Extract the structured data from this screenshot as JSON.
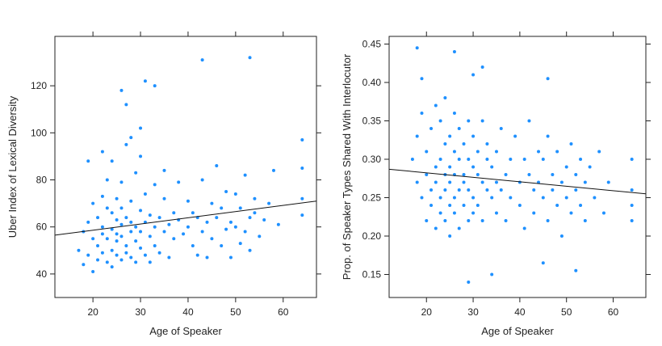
{
  "chart_data": [
    {
      "type": "scatter",
      "xlabel": "Age of Speaker",
      "ylabel": "Uber Index of Lexical Diversity",
      "xlim": [
        12,
        67
      ],
      "ylim": [
        30,
        141
      ],
      "x_ticks": [
        20,
        30,
        40,
        50,
        60
      ],
      "y_ticks": [
        40,
        60,
        80,
        100,
        120
      ],
      "point_color": "#1e90ff",
      "grid": false,
      "fit_line": {
        "x": [
          12,
          67
        ],
        "y": [
          56.5,
          71
        ]
      },
      "series": [
        {
          "x": [
            17,
            18,
            18,
            19,
            19,
            20,
            20,
            20,
            21,
            21,
            21,
            22,
            22,
            22,
            22,
            23,
            23,
            23,
            23,
            24,
            24,
            24,
            24,
            24,
            25,
            25,
            25,
            25,
            25,
            26,
            26,
            26,
            26,
            26,
            27,
            27,
            27,
            27,
            28,
            28,
            28,
            28,
            29,
            29,
            29,
            29,
            30,
            30,
            30,
            30,
            31,
            31,
            31,
            32,
            32,
            32,
            33,
            33,
            33,
            34,
            34,
            35,
            35,
            35,
            36,
            36,
            37,
            37,
            38,
            38,
            39,
            40,
            40,
            41,
            41,
            42,
            42,
            43,
            43,
            44,
            44,
            45,
            45,
            46,
            46,
            47,
            47,
            48,
            48,
            49,
            49,
            50,
            50,
            51,
            51,
            52,
            52,
            53,
            53,
            54,
            54,
            55,
            56,
            57,
            58,
            59,
            64,
            64,
            64,
            64,
            26,
            27,
            31,
            33,
            43,
            53,
            30,
            28,
            22,
            19
          ],
          "y": [
            50,
            58,
            44,
            62,
            48,
            55,
            41,
            70,
            52,
            64,
            46,
            57,
            73,
            49,
            60,
            55,
            68,
            45,
            80,
            59,
            50,
            66,
            88,
            43,
            57,
            72,
            48,
            63,
            54,
            61,
            46,
            79,
            56,
            68,
            52,
            64,
            49,
            95,
            58,
            71,
            47,
            62,
            54,
            83,
            60,
            45,
            58,
            67,
            51,
            90,
            62,
            48,
            74,
            56,
            65,
            45,
            60,
            78,
            52,
            64,
            49,
            58,
            72,
            84,
            61,
            47,
            66,
            55,
            63,
            79,
            57,
            60,
            71,
            52,
            66,
            64,
            48,
            58,
            80,
            62,
            47,
            70,
            55,
            64,
            86,
            52,
            68,
            59,
            75,
            47,
            62,
            60,
            74,
            53,
            68,
            58,
            82,
            64,
            50,
            66,
            72,
            56,
            63,
            70,
            84,
            61,
            72,
            65,
            85,
            97,
            118,
            112,
            122,
            120,
            131,
            132,
            102,
            98,
            92,
            88
          ]
        }
      ]
    },
    {
      "type": "scatter",
      "xlabel": "Age of Speaker",
      "ylabel": "Prop. of Speaker Types Shared With Interlocutor",
      "xlim": [
        12,
        67
      ],
      "ylim": [
        0.12,
        0.46
      ],
      "x_ticks": [
        20,
        30,
        40,
        50,
        60
      ],
      "y_ticks": [
        0.15,
        0.2,
        0.25,
        0.3,
        0.35,
        0.4,
        0.45
      ],
      "point_color": "#1e90ff",
      "grid": false,
      "fit_line": {
        "x": [
          12,
          67
        ],
        "y": [
          0.287,
          0.255
        ]
      },
      "series": [
        {
          "x": [
            17,
            18,
            18,
            19,
            19,
            20,
            20,
            20,
            21,
            21,
            21,
            22,
            22,
            22,
            22,
            23,
            23,
            23,
            23,
            24,
            24,
            24,
            24,
            24,
            25,
            25,
            25,
            25,
            25,
            26,
            26,
            26,
            26,
            26,
            27,
            27,
            27,
            27,
            28,
            28,
            28,
            28,
            29,
            29,
            29,
            29,
            30,
            30,
            30,
            30,
            31,
            31,
            31,
            32,
            32,
            32,
            33,
            33,
            33,
            34,
            34,
            35,
            35,
            35,
            36,
            36,
            37,
            37,
            38,
            38,
            39,
            40,
            40,
            41,
            41,
            42,
            42,
            43,
            43,
            44,
            44,
            45,
            45,
            46,
            46,
            47,
            47,
            48,
            48,
            49,
            49,
            50,
            50,
            51,
            51,
            52,
            52,
            53,
            53,
            54,
            54,
            55,
            56,
            57,
            58,
            59,
            64,
            64,
            64,
            64,
            18,
            26,
            32,
            19,
            30,
            46,
            52,
            34,
            29,
            45
          ],
          "y": [
            0.3,
            0.27,
            0.33,
            0.25,
            0.36,
            0.28,
            0.22,
            0.31,
            0.26,
            0.34,
            0.24,
            0.29,
            0.37,
            0.21,
            0.27,
            0.3,
            0.25,
            0.35,
            0.23,
            0.28,
            0.32,
            0.26,
            0.38,
            0.22,
            0.29,
            0.24,
            0.33,
            0.27,
            0.2,
            0.31,
            0.25,
            0.36,
            0.28,
            0.23,
            0.3,
            0.26,
            0.34,
            0.21,
            0.28,
            0.32,
            0.24,
            0.27,
            0.3,
            0.22,
            0.35,
            0.26,
            0.29,
            0.25,
            0.33,
            0.23,
            0.28,
            0.31,
            0.24,
            0.27,
            0.35,
            0.22,
            0.3,
            0.26,
            0.32,
            0.25,
            0.29,
            0.23,
            0.31,
            0.27,
            0.34,
            0.26,
            0.28,
            0.22,
            0.3,
            0.25,
            0.33,
            0.27,
            0.24,
            0.3,
            0.21,
            0.28,
            0.35,
            0.26,
            0.23,
            0.31,
            0.27,
            0.25,
            0.3,
            0.22,
            0.33,
            0.28,
            0.26,
            0.24,
            0.31,
            0.27,
            0.2,
            0.29,
            0.25,
            0.32,
            0.23,
            0.28,
            0.26,
            0.3,
            0.24,
            0.27,
            0.22,
            0.29,
            0.25,
            0.31,
            0.23,
            0.27,
            0.3,
            0.26,
            0.24,
            0.22,
            0.445,
            0.44,
            0.42,
            0.405,
            0.41,
            0.405,
            0.155,
            0.15,
            0.14,
            0.165
          ]
        }
      ]
    }
  ]
}
